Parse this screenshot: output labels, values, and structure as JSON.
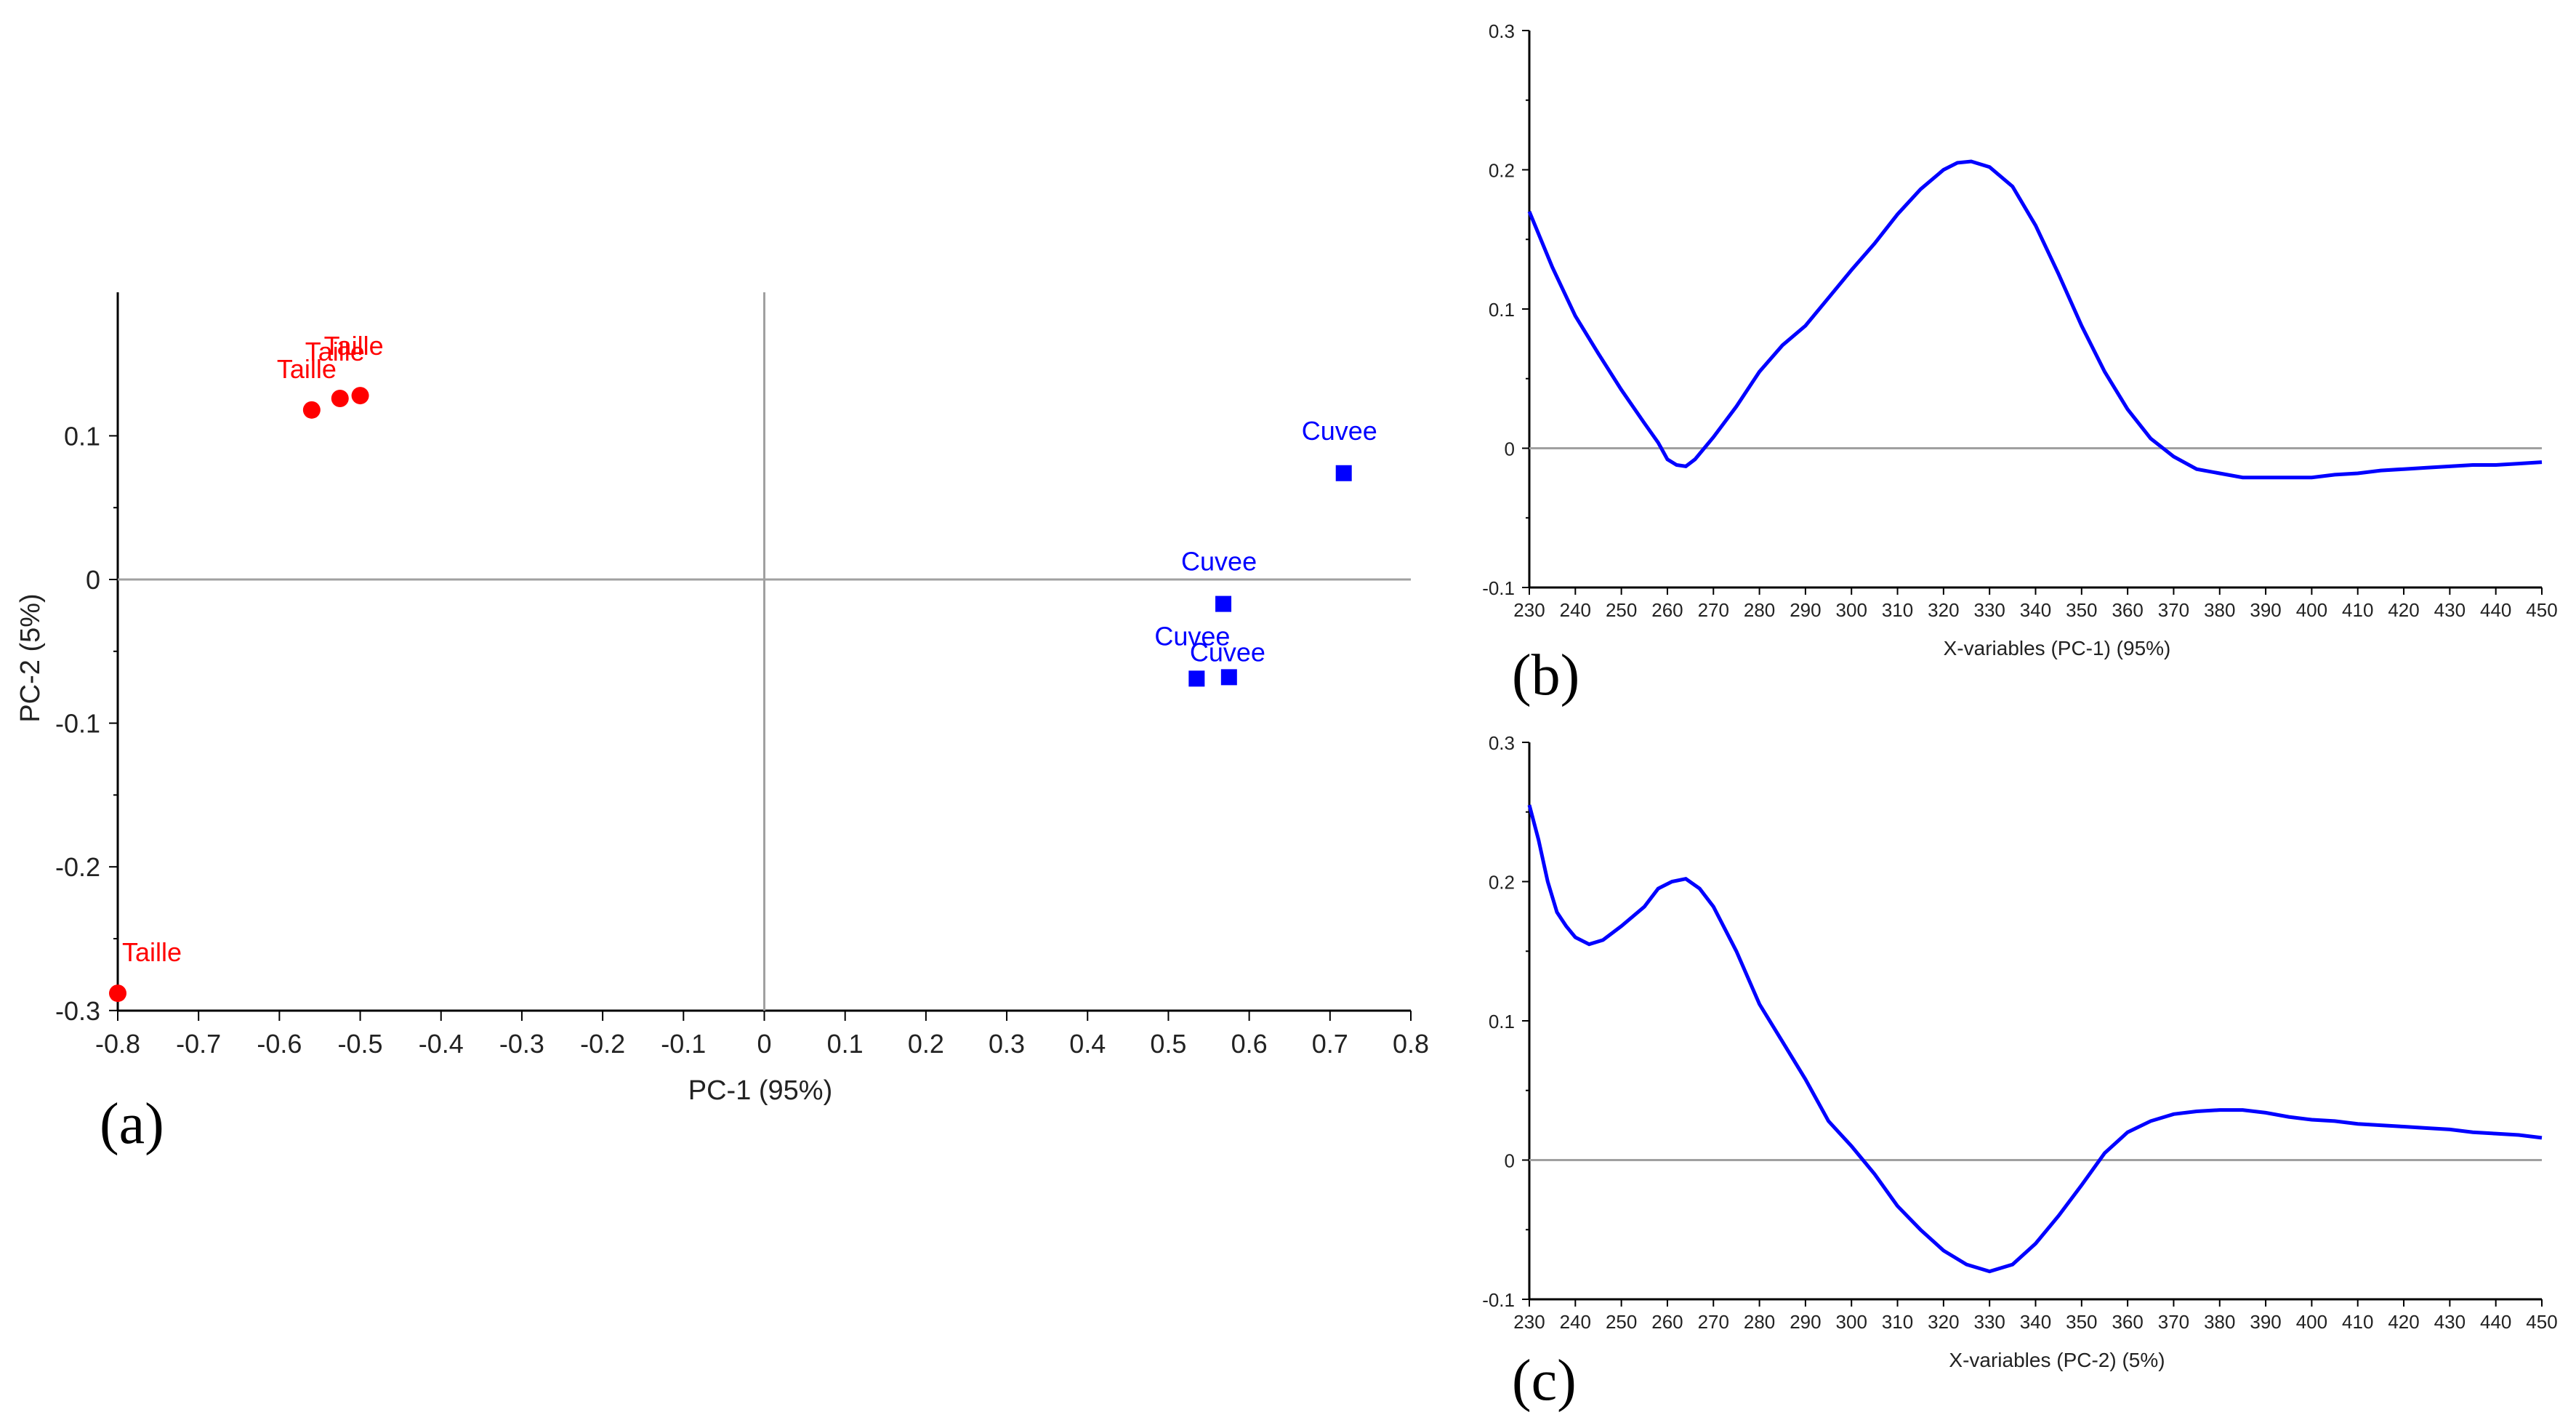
{
  "colors": {
    "taille": "#ff0000",
    "cuvee": "#0000ff",
    "line": "#0000ff",
    "axis": "#000000",
    "zero": "#a0a0a0"
  },
  "chart_data": [
    {
      "panel": "(a)",
      "type": "scatter",
      "xlabel": "PC-1 (95%)",
      "ylabel": "PC-2 (5%)",
      "xlim": [
        -0.8,
        0.8
      ],
      "ylim": [
        -0.3,
        0.2
      ],
      "xticks": [
        "-0.8",
        "-0.7",
        "-0.6",
        "-0.5",
        "-0.4",
        "-0.3",
        "-0.2",
        "-0.1",
        "0",
        "0.1",
        "0.2",
        "0.3",
        "0.4",
        "0.5",
        "0.6",
        "0.7",
        "0.8"
      ],
      "yticks": [
        "-0.3",
        "-0.2",
        "-0.1",
        "0",
        "0.1"
      ],
      "series": [
        {
          "name": "Taille",
          "marker": "circle",
          "points": [
            {
              "x": -0.56,
              "y": 0.118,
              "label": "Taille"
            },
            {
              "x": -0.525,
              "y": 0.126,
              "label": "Taille"
            },
            {
              "x": -0.5,
              "y": 0.128,
              "label": "Taille"
            },
            {
              "x": -0.8,
              "y": -0.288,
              "label": "Taille"
            }
          ]
        },
        {
          "name": "Cuvee",
          "marker": "square",
          "points": [
            {
              "x": 0.717,
              "y": 0.074,
              "label": "Cuvee"
            },
            {
              "x": 0.568,
              "y": -0.017,
              "label": "Cuvee"
            },
            {
              "x": 0.535,
              "y": -0.069,
              "label": "Cuvee"
            },
            {
              "x": 0.575,
              "y": -0.068,
              "label": "Cuvee"
            }
          ]
        }
      ]
    },
    {
      "panel": "(b)",
      "type": "line",
      "xlabel": "X-variables (PC-1) (95%)",
      "ylabel": "",
      "xlim": [
        230,
        450
      ],
      "ylim": [
        -0.1,
        0.3
      ],
      "xticks": [
        "230",
        "240",
        "250",
        "260",
        "270",
        "280",
        "290",
        "300",
        "310",
        "320",
        "330",
        "340",
        "350",
        "360",
        "370",
        "380",
        "390",
        "400",
        "410",
        "420",
        "430",
        "440",
        "450"
      ],
      "yticks": [
        "-0.1",
        "0",
        "0.1",
        "0.2",
        "0.3"
      ],
      "x": [
        230,
        235,
        240,
        245,
        250,
        255,
        258,
        260,
        262,
        264,
        266,
        268,
        270,
        275,
        280,
        285,
        290,
        295,
        300,
        305,
        310,
        315,
        320,
        323,
        326,
        330,
        335,
        340,
        345,
        350,
        355,
        360,
        365,
        370,
        375,
        380,
        385,
        390,
        395,
        400,
        405,
        410,
        415,
        420,
        425,
        430,
        435,
        440,
        445,
        450
      ],
      "y": [
        0.17,
        0.13,
        0.095,
        0.068,
        0.042,
        0.018,
        0.004,
        -0.008,
        -0.012,
        -0.013,
        -0.008,
        0.0,
        0.008,
        0.03,
        0.055,
        0.074,
        0.088,
        0.108,
        0.128,
        0.147,
        0.168,
        0.186,
        0.2,
        0.205,
        0.206,
        0.202,
        0.188,
        0.16,
        0.125,
        0.088,
        0.055,
        0.028,
        0.007,
        -0.006,
        -0.015,
        -0.018,
        -0.021,
        -0.021,
        -0.021,
        -0.021,
        -0.019,
        -0.018,
        -0.016,
        -0.015,
        -0.014,
        -0.013,
        -0.012,
        -0.012,
        -0.011,
        -0.01
      ]
    },
    {
      "panel": "(c)",
      "type": "line",
      "xlabel": "X-variables (PC-2) (5%)",
      "ylabel": "",
      "xlim": [
        230,
        450
      ],
      "ylim": [
        -0.1,
        0.3
      ],
      "xticks": [
        "230",
        "240",
        "250",
        "260",
        "270",
        "280",
        "290",
        "300",
        "310",
        "320",
        "330",
        "340",
        "350",
        "360",
        "370",
        "380",
        "390",
        "400",
        "410",
        "420",
        "430",
        "440",
        "450"
      ],
      "yticks": [
        "-0.1",
        "0",
        "0.1",
        "0.2",
        "0.3"
      ],
      "x": [
        230,
        232,
        234,
        236,
        238,
        240,
        243,
        246,
        250,
        255,
        258,
        261,
        264,
        267,
        270,
        275,
        280,
        285,
        290,
        295,
        300,
        305,
        310,
        315,
        320,
        325,
        330,
        335,
        340,
        345,
        350,
        355,
        360,
        365,
        370,
        375,
        380,
        385,
        390,
        395,
        400,
        405,
        410,
        415,
        420,
        425,
        430,
        435,
        440,
        445,
        450
      ],
      "y": [
        0.255,
        0.23,
        0.2,
        0.178,
        0.168,
        0.16,
        0.155,
        0.158,
        0.168,
        0.182,
        0.195,
        0.2,
        0.202,
        0.195,
        0.182,
        0.15,
        0.112,
        0.085,
        0.058,
        0.028,
        0.01,
        -0.01,
        -0.033,
        -0.05,
        -0.065,
        -0.075,
        -0.08,
        -0.075,
        -0.06,
        -0.04,
        -0.018,
        0.005,
        0.02,
        0.028,
        0.033,
        0.035,
        0.036,
        0.036,
        0.034,
        0.031,
        0.029,
        0.028,
        0.026,
        0.025,
        0.024,
        0.023,
        0.022,
        0.02,
        0.019,
        0.018,
        0.016
      ]
    }
  ]
}
